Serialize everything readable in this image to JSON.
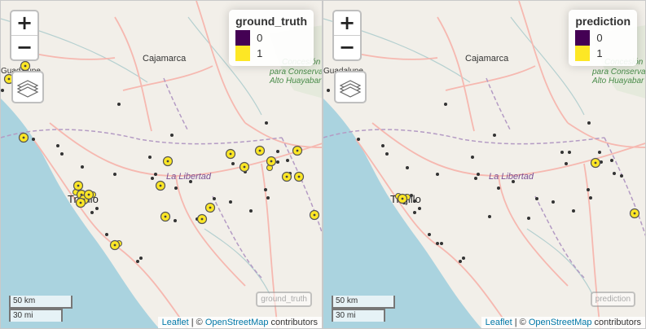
{
  "map_labels": {
    "cajamarca": "Cajamarca",
    "la_libertad": "La Libertad",
    "trujillo": "Trujillo",
    "guadalupe": "Guadalupe",
    "conc1": "Concesión",
    "conc2": "para Conserva",
    "conc3": "Alto Huayabar"
  },
  "scale": {
    "km": "50 km",
    "mi": "30 mi"
  },
  "attribution": {
    "leaflet": "Leaflet",
    "sep": " | © ",
    "osm": "OpenStreetMap",
    "contributors": " contributors"
  },
  "controls": {
    "zoom_in": "+",
    "zoom_out": "−"
  },
  "colors": {
    "class0": "#440154",
    "class1": "#fde725",
    "water": "#aad3df",
    "land": "#f2efe9",
    "road": "#f6b8b0"
  },
  "panels": [
    {
      "legend_title": "ground_truth",
      "legend_items": [
        {
          "label": "0",
          "color": "#440154"
        },
        {
          "label": "1",
          "color": "#fde725"
        }
      ],
      "layer_label": "ground_truth"
    },
    {
      "legend_title": "prediction",
      "legend_items": [
        {
          "label": "0",
          "color": "#440154"
        },
        {
          "label": "1",
          "color": "#fde725"
        }
      ],
      "layer_label": "prediction"
    }
  ],
  "markers": {
    "ground_truth": {
      "class1_large": [
        [
          30,
          80
        ],
        [
          10,
          96
        ],
        [
          28,
          168
        ],
        [
          205,
          197
        ],
        [
          196,
          227
        ],
        [
          282,
          188
        ],
        [
          299,
          204
        ],
        [
          318,
          184
        ],
        [
          332,
          197
        ],
        [
          364,
          184
        ],
        [
          366,
          216
        ],
        [
          351,
          216
        ],
        [
          257,
          254
        ],
        [
          247,
          268
        ],
        [
          202,
          265
        ],
        [
          385,
          263
        ],
        [
          95,
          227
        ],
        [
          99,
          238
        ],
        [
          102,
          244
        ],
        [
          108,
          238
        ],
        [
          98,
          248
        ],
        [
          140,
          300
        ]
      ],
      "class1_small": [
        [
          113,
          238
        ],
        [
          103,
          239
        ],
        [
          92,
          235
        ],
        [
          145,
          298
        ],
        [
          330,
          205
        ]
      ],
      "class0": [
        [
          40,
          170
        ],
        [
          70,
          178
        ],
        [
          75,
          188
        ],
        [
          210,
          165
        ],
        [
          183,
          192
        ],
        [
          190,
          213
        ],
        [
          186,
          218
        ],
        [
          233,
          222
        ],
        [
          215,
          230
        ],
        [
          262,
          243
        ],
        [
          282,
          247
        ],
        [
          300,
          210
        ],
        [
          285,
          200
        ],
        [
          326,
          150
        ],
        [
          340,
          185
        ],
        [
          352,
          196
        ],
        [
          340,
          198
        ],
        [
          355,
          212
        ],
        [
          325,
          232
        ],
        [
          328,
          242
        ],
        [
          307,
          258
        ],
        [
          100,
          204
        ],
        [
          140,
          213
        ],
        [
          118,
          255
        ],
        [
          112,
          260
        ],
        [
          130,
          287
        ],
        [
          172,
          316
        ],
        [
          168,
          320
        ],
        [
          145,
          127
        ],
        [
          2,
          110
        ],
        [
          214,
          270
        ],
        [
          241,
          268
        ],
        [
          255,
          254
        ]
      ]
    },
    "prediction": {
      "class1_large": [
        [
          97,
          243
        ],
        [
          334,
          199
        ],
        [
          382,
          261
        ]
      ],
      "class1_small": [
        [
          92,
          240
        ],
        [
          103,
          241
        ]
      ],
      "class0": [
        [
          43,
          170
        ],
        [
          73,
          178
        ],
        [
          78,
          188
        ],
        [
          210,
          165
        ],
        [
          183,
          192
        ],
        [
          190,
          213
        ],
        [
          187,
          218
        ],
        [
          233,
          222
        ],
        [
          215,
          230
        ],
        [
          262,
          243
        ],
        [
          282,
          247
        ],
        [
          298,
          200
        ],
        [
          293,
          186
        ],
        [
          302,
          186
        ],
        [
          326,
          150
        ],
        [
          339,
          186
        ],
        [
          354,
          196
        ],
        [
          341,
          198
        ],
        [
          357,
          212
        ],
        [
          366,
          215
        ],
        [
          325,
          232
        ],
        [
          328,
          242
        ],
        [
          307,
          258
        ],
        [
          204,
          265
        ],
        [
          252,
          267
        ],
        [
          103,
          205
        ],
        [
          140,
          213
        ],
        [
          118,
          255
        ],
        [
          112,
          260
        ],
        [
          130,
          287
        ],
        [
          172,
          316
        ],
        [
          168,
          320
        ],
        [
          140,
          298
        ],
        [
          145,
          298
        ],
        [
          150,
          127
        ],
        [
          6,
          110
        ],
        [
          102,
          239
        ],
        [
          108,
          239
        ],
        [
          99,
          248
        ],
        [
          112,
          246
        ]
      ]
    }
  }
}
